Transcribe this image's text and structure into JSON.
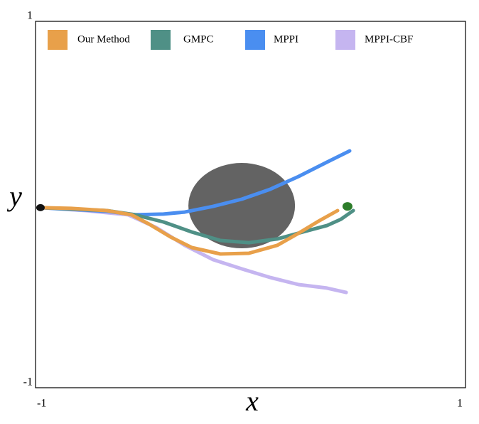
{
  "chart_data": {
    "type": "line",
    "xlabel": "x",
    "ylabel": "y",
    "xlim": [
      -1,
      1
    ],
    "ylim": [
      -1,
      1
    ],
    "xticks": [
      -1,
      1
    ],
    "yticks": [
      -1,
      1
    ],
    "grid": false,
    "legend": "top",
    "obstacle": {
      "center": [
        -0.041,
        -0.006
      ],
      "radius": [
        0.248,
        0.233
      ],
      "color": "#636363"
    },
    "start": {
      "point": [
        -0.977,
        -0.017
      ],
      "color": "#111111"
    },
    "goal": {
      "point": [
        0.451,
        -0.01
      ],
      "color": "#2d7d2a"
    },
    "series": [
      {
        "name": "Our Method",
        "color": "#e8a04a",
        "x": [
          -0.977,
          -0.835,
          -0.669,
          -0.554,
          -0.471,
          -0.372,
          -0.273,
          -0.14,
          -0.008,
          0.124,
          0.223,
          0.322,
          0.405
        ],
        "values": [
          -0.017,
          -0.021,
          -0.033,
          -0.056,
          -0.107,
          -0.177,
          -0.235,
          -0.27,
          -0.266,
          -0.223,
          -0.157,
          -0.087,
          -0.033
        ]
      },
      {
        "name": "GMPC",
        "color": "#4f9086",
        "x": [
          -0.977,
          -0.669,
          -0.537,
          -0.405,
          -0.273,
          -0.14,
          -0.008,
          0.124,
          0.256,
          0.355,
          0.421,
          0.478
        ],
        "values": [
          -0.017,
          -0.033,
          -0.056,
          -0.095,
          -0.15,
          -0.196,
          -0.208,
          -0.188,
          -0.146,
          -0.115,
          -0.08,
          -0.033
        ]
      },
      {
        "name": "MPPI",
        "color": "#4a8ef0",
        "x": [
          -0.977,
          -0.669,
          -0.537,
          -0.405,
          -0.306,
          -0.174,
          -0.041,
          0.091,
          0.223,
          0.355,
          0.461
        ],
        "values": [
          -0.017,
          -0.037,
          -0.056,
          -0.052,
          -0.041,
          -0.01,
          0.029,
          0.083,
          0.153,
          0.231,
          0.293
        ]
      },
      {
        "name": "MPPI-CBF",
        "color": "#c5b5f0",
        "x": [
          -0.977,
          -0.769,
          -0.57,
          -0.438,
          -0.306,
          -0.174,
          -0.041,
          0.091,
          0.223,
          0.355,
          0.445
        ],
        "values": [
          -0.017,
          -0.033,
          -0.056,
          -0.126,
          -0.223,
          -0.301,
          -0.351,
          -0.398,
          -0.437,
          -0.456,
          -0.48
        ]
      }
    ]
  }
}
